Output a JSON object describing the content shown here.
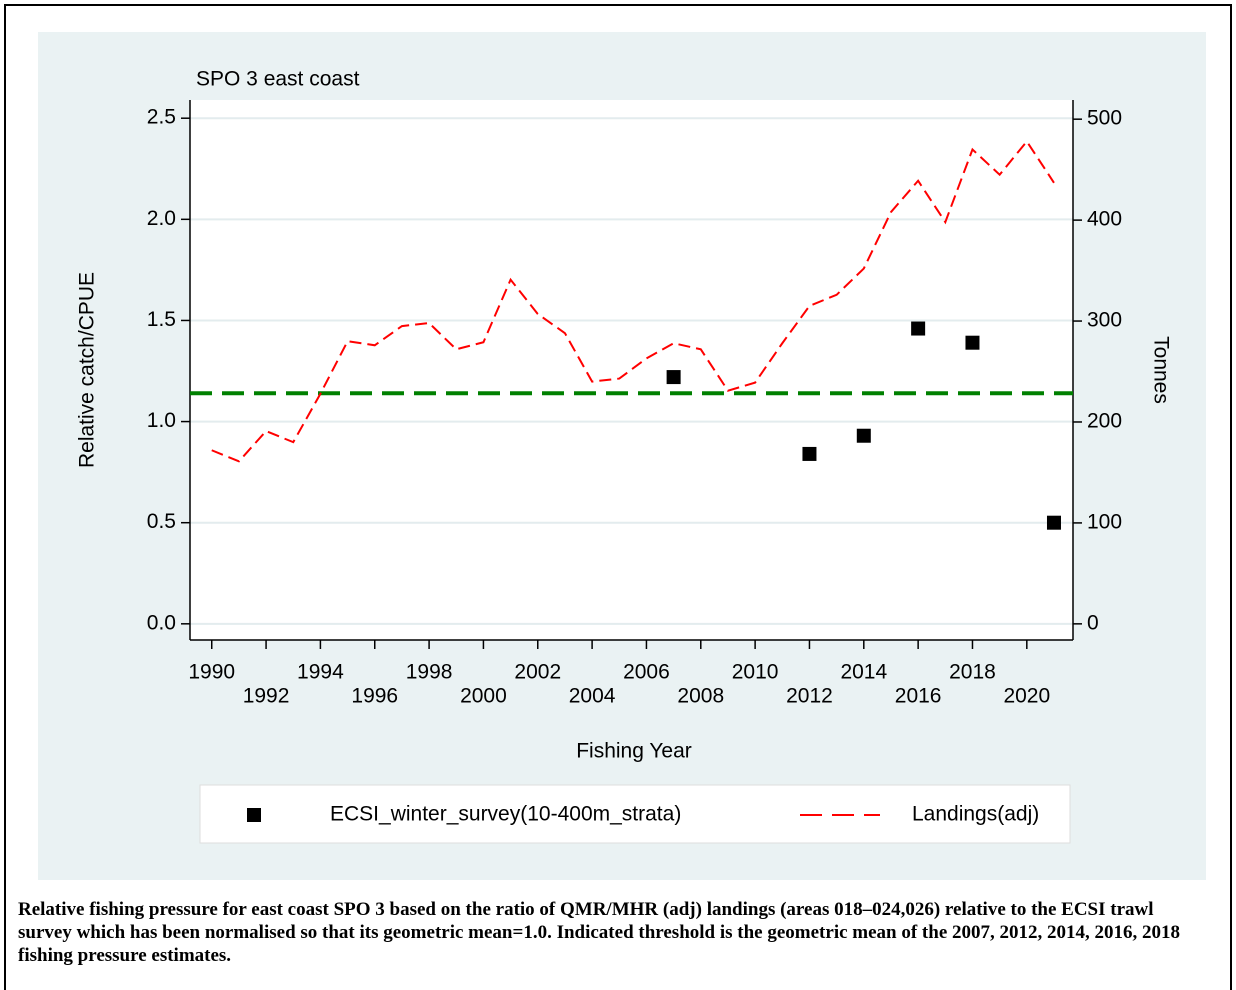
{
  "chart_data": {
    "type": "line",
    "title": "SPO 3 east coast",
    "xlabel": "Fishing Year",
    "ylabel": "Relative catch/CPUE",
    "y2label": "Tonnes",
    "x": [
      1990,
      1991,
      1992,
      1993,
      1994,
      1995,
      1996,
      1997,
      1998,
      1999,
      2000,
      2001,
      2002,
      2003,
      2004,
      2005,
      2006,
      2007,
      2008,
      2009,
      2010,
      2011,
      2012,
      2013,
      2014,
      2015,
      2016,
      2017,
      2018,
      2019,
      2020,
      2021
    ],
    "series": [
      {
        "name": "ECSI_winter_survey(10-400m_strata)",
        "type": "scatter",
        "color": "#000000",
        "axis": "y",
        "x": [
          2007,
          2012,
          2014,
          2016,
          2018,
          2021
        ],
        "values": [
          1.22,
          0.84,
          0.93,
          1.46,
          1.39,
          0.5
        ]
      },
      {
        "name": "Landings(adj)",
        "type": "line",
        "color": "#ff0000",
        "axis": "y2",
        "values": [
          172,
          161,
          191,
          180,
          228,
          280,
          276,
          295,
          298,
          272,
          279,
          341,
          307,
          288,
          240,
          243,
          263,
          278,
          272,
          231,
          239,
          278,
          315,
          326,
          352,
          408,
          439,
          398,
          470,
          445,
          478,
          437
        ]
      }
    ],
    "threshold": {
      "value": 1.14,
      "color": "#008000"
    },
    "xlim": [
      1989.2,
      2021.7
    ],
    "xticks": [
      1990,
      1992,
      1994,
      1996,
      1998,
      2000,
      2002,
      2004,
      2006,
      2008,
      2010,
      2012,
      2014,
      2016,
      2018,
      2020
    ],
    "ylim": [
      -0.08,
      2.59
    ],
    "yticks": [
      {
        "value": 0,
        "label": "0.0"
      },
      0.5,
      {
        "value": 1,
        "label": "1.0"
      },
      1.5,
      {
        "value": 2,
        "label": "2.0"
      },
      2.5
    ],
    "y2lim": [
      -16,
      519
    ],
    "y2ticks": [
      0,
      100,
      200,
      300,
      400,
      500
    ],
    "grid": true
  },
  "caption": "Relative fishing pressure for east coast SPO 3 based on the ratio of QMR/MHR (adj) landings (areas 018–024,026) relative to the ECSI trawl survey which has been normalised so that its geometric mean=1.0. Indicated threshold is the geometric mean of the 2007, 2012, 2014, 2016, 2018 fishing pressure estimates."
}
